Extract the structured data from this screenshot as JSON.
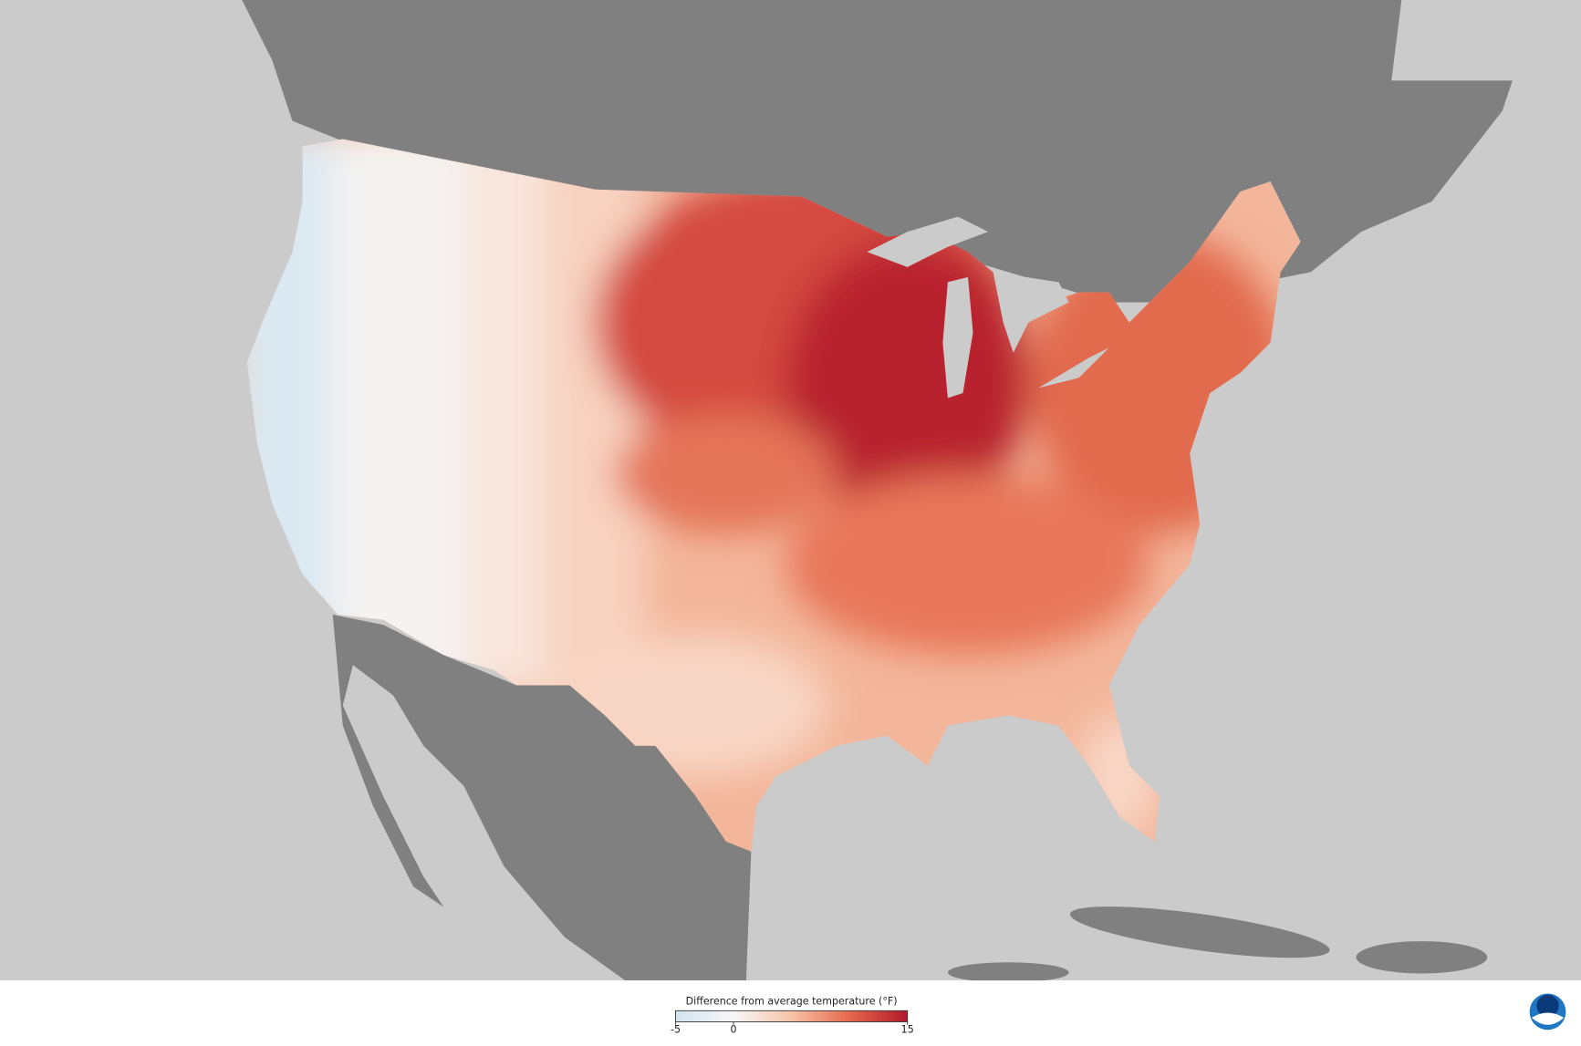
{
  "legend": {
    "title": "Difference from average temperature (°F)",
    "ticks": [
      -5,
      0,
      15
    ]
  }
}
